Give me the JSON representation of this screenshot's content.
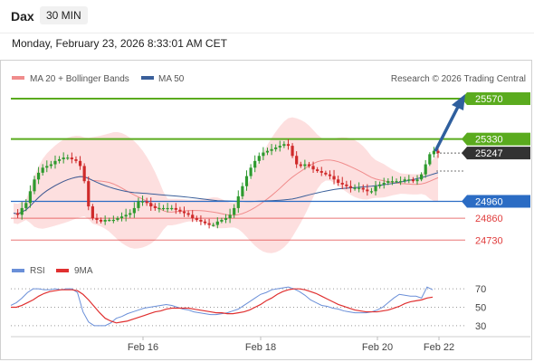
{
  "header": {
    "symbol": "Dax",
    "timeframe": "30 MIN"
  },
  "datetime": "Monday, February 23, 2026 8:33:01 AM CET",
  "legend": {
    "bb_label": "MA 20 + Bollinger Bands",
    "ma50_label": "MA 50",
    "credit": "Research © 2026 Trading Central",
    "rsi_label": "RSI",
    "rsi_ma_label": "9MA"
  },
  "colors": {
    "resistance": "#5aab1e",
    "current": "#333333",
    "pivot": "#2b6cc4",
    "support": "#e03c3c",
    "bb_fill": "#fdd9d9",
    "ma20": "#f08c8c",
    "ma50": "#3a5f9a",
    "rsi": "#6a8fd8",
    "rsi_ma": "#e03030",
    "candle_up": "#2e9a2e",
    "candle_down": "#cf2a2a",
    "arrow": "#2f5f9e"
  },
  "chart_data": {
    "type": "candlestick",
    "x_axis_ticks": [
      "Feb 16",
      "Feb 18",
      "Feb 20",
      "Feb 22"
    ],
    "ylim": [
      24640,
      25640
    ],
    "levels": [
      {
        "label": "25570",
        "value": 25570,
        "kind": "resistance"
      },
      {
        "label": "25330",
        "value": 25330,
        "kind": "resistance"
      },
      {
        "label": "25247",
        "value": 25247,
        "kind": "current"
      },
      {
        "label": "24960",
        "value": 24960,
        "kind": "pivot"
      },
      {
        "label": "24860",
        "value": 24860,
        "kind": "support"
      },
      {
        "label": "24730",
        "value": 24730,
        "kind": "support"
      }
    ],
    "close_series": [
      24890,
      24880,
      24920,
      24950,
      25020,
      25090,
      25130,
      25160,
      25170,
      25180,
      25200,
      25210,
      25220,
      25220,
      25210,
      25200,
      25170,
      25080,
      24930,
      24860,
      24850,
      24840,
      24850,
      24850,
      24850,
      24860,
      24870,
      24880,
      24890,
      24920,
      24960,
      24960,
      24950,
      24930,
      24920,
      24920,
      24920,
      24920,
      24920,
      24910,
      24900,
      24890,
      24880,
      24860,
      24850,
      24840,
      24830,
      24820,
      24820,
      24840,
      24850,
      24860,
      24880,
      24920,
      24990,
      25050,
      25110,
      25160,
      25200,
      25230,
      25250,
      25260,
      25270,
      25280,
      25290,
      25300,
      25290,
      25230,
      25180,
      25170,
      25180,
      25170,
      25150,
      25140,
      25130,
      25120,
      25110,
      25090,
      25070,
      25060,
      25050,
      25040,
      25040,
      25040,
      25030,
      25020,
      25020,
      25050,
      25060,
      25070,
      25080,
      25080,
      25080,
      25080,
      25090,
      25090,
      25080,
      25090,
      25120,
      25180,
      25240,
      25260,
      25247
    ],
    "rsi": {
      "levels": [
        70,
        50,
        30
      ],
      "ylim": [
        20,
        80
      ],
      "values": [
        52,
        55,
        60,
        66,
        70,
        70,
        69,
        69,
        70,
        69,
        70,
        70,
        66,
        45,
        34,
        30,
        30,
        30,
        33,
        38,
        40,
        43,
        45,
        47,
        49,
        50,
        51,
        52,
        53,
        52,
        50,
        48,
        47,
        45,
        44,
        43,
        42,
        42,
        43,
        44,
        46,
        48,
        52,
        56,
        60,
        64,
        66,
        69,
        70,
        71,
        72,
        70,
        67,
        63,
        58,
        55,
        52,
        51,
        49,
        48,
        46,
        45,
        44,
        44,
        44,
        45,
        47,
        50,
        55,
        60,
        64,
        63,
        62,
        62,
        60,
        72,
        69
      ],
      "ma_values": [
        50,
        50,
        52,
        55,
        58,
        62,
        65,
        67,
        68,
        69,
        69,
        69,
        68,
        64,
        58,
        51,
        44,
        38,
        35,
        33,
        34,
        35,
        37,
        39,
        41,
        43,
        45,
        46,
        48,
        49,
        49,
        49,
        49,
        48,
        47,
        46,
        45,
        44,
        44,
        43,
        43,
        44,
        45,
        47,
        50,
        53,
        57,
        60,
        64,
        67,
        69,
        70,
        70,
        69,
        67,
        65,
        62,
        59,
        56,
        53,
        51,
        49,
        47,
        46,
        45,
        45,
        45,
        46,
        47,
        49,
        51,
        54,
        56,
        57,
        58,
        60,
        61
      ]
    }
  }
}
